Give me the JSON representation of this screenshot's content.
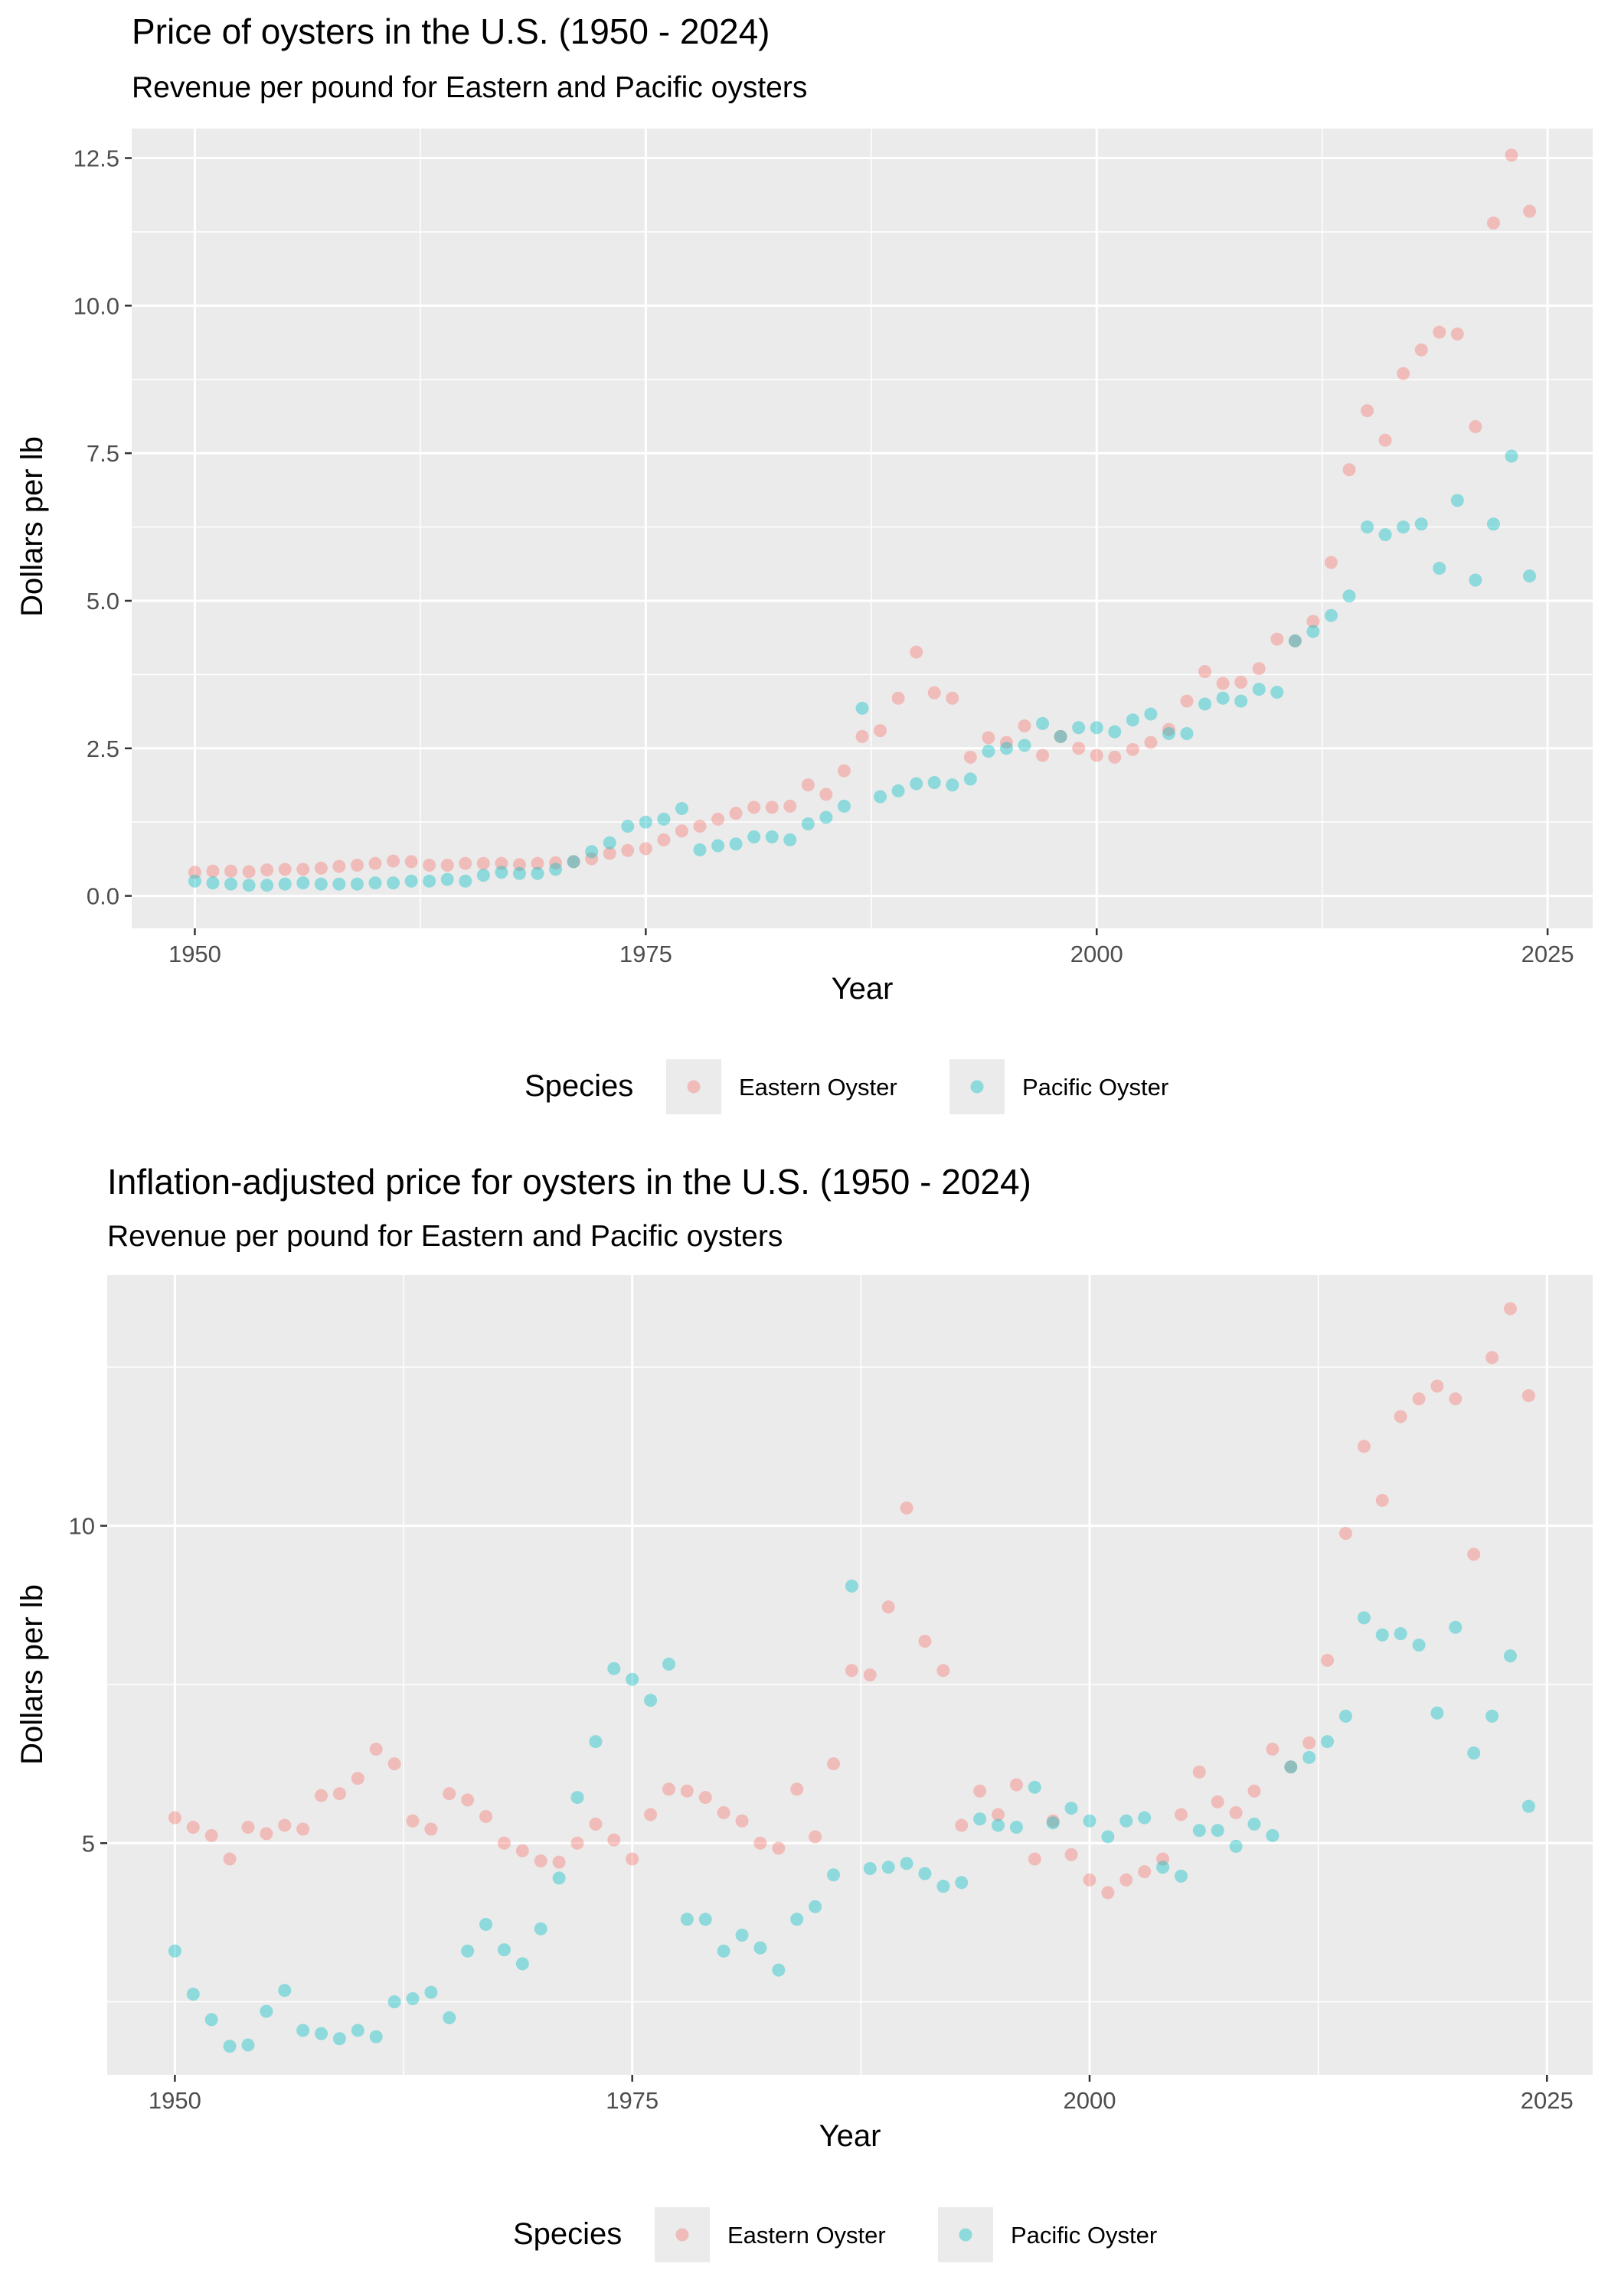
{
  "chart_data": [
    {
      "type": "scatter",
      "title": "Price of oysters in the U.S. (1950 - 2024)",
      "subtitle": "Revenue per pound for Eastern and Pacific oysters",
      "xlabel": "Year",
      "ylabel": "Dollars per lb",
      "xlim": [
        1946.5,
        2027.5
      ],
      "ylim": [
        -0.55,
        13.0
      ],
      "xticks": [
        1950,
        1975,
        2000,
        2025
      ],
      "yticks": [
        0,
        2.5,
        5,
        7.5,
        10,
        12.5
      ],
      "ytick_labels": [
        "0.0",
        "2.5",
        "5.0",
        "7.5",
        "10.0",
        "12.5"
      ],
      "grid": true,
      "legend": {
        "title": "Species",
        "position": "bottom"
      },
      "x": [
        1950,
        1951,
        1952,
        1953,
        1954,
        1955,
        1956,
        1957,
        1958,
        1959,
        1960,
        1961,
        1962,
        1963,
        1964,
        1965,
        1966,
        1967,
        1968,
        1969,
        1970,
        1971,
        1972,
        1973,
        1974,
        1975,
        1976,
        1977,
        1978,
        1979,
        1980,
        1981,
        1982,
        1983,
        1984,
        1985,
        1986,
        1987,
        1988,
        1989,
        1990,
        1991,
        1992,
        1993,
        1994,
        1995,
        1996,
        1997,
        1998,
        1999,
        2000,
        2001,
        2002,
        2003,
        2004,
        2005,
        2006,
        2007,
        2008,
        2009,
        2010,
        2011,
        2012,
        2013,
        2014,
        2015,
        2016,
        2017,
        2018,
        2019,
        2020,
        2021,
        2022,
        2023,
        2024
      ],
      "series": [
        {
          "name": "Eastern Oyster",
          "color": "#F8766D",
          "values": [
            0.4,
            0.42,
            0.42,
            0.41,
            0.44,
            0.45,
            0.45,
            0.47,
            0.5,
            0.52,
            0.55,
            0.59,
            0.58,
            0.52,
            0.52,
            0.55,
            0.55,
            0.55,
            0.53,
            0.55,
            0.56,
            0.58,
            0.63,
            0.72,
            0.77,
            0.8,
            0.95,
            1.1,
            1.18,
            1.3,
            1.4,
            1.5,
            1.5,
            1.52,
            1.88,
            1.72,
            2.12,
            2.7,
            2.8,
            3.35,
            4.13,
            3.44,
            3.35,
            2.35,
            2.68,
            2.6,
            2.88,
            2.38,
            2.7,
            2.5,
            2.38,
            2.35,
            2.48,
            2.6,
            2.82,
            3.3,
            3.8,
            3.6,
            3.62,
            3.85,
            4.35,
            4.32,
            4.65,
            5.65,
            7.22,
            8.22,
            7.72,
            8.85,
            9.25,
            9.55,
            9.52,
            7.95,
            11.4,
            12.55,
            11.6
          ]
        },
        {
          "name": "Pacific Oyster",
          "color": "#00BFC4",
          "values": [
            0.25,
            0.22,
            0.2,
            0.18,
            0.18,
            0.2,
            0.22,
            0.2,
            0.2,
            0.2,
            0.22,
            0.22,
            0.25,
            0.25,
            0.28,
            0.25,
            0.35,
            0.4,
            0.38,
            0.38,
            0.45,
            0.58,
            0.75,
            0.9,
            1.18,
            1.25,
            1.3,
            1.48,
            0.78,
            0.85,
            0.88,
            1.0,
            1.0,
            0.95,
            1.22,
            1.33,
            1.52,
            3.18,
            1.68,
            1.78,
            1.9,
            1.92,
            1.88,
            1.98,
            2.45,
            2.5,
            2.55,
            2.92,
            2.7,
            2.85,
            2.85,
            2.78,
            2.98,
            3.08,
            2.75,
            2.75,
            3.25,
            3.35,
            3.3,
            3.5,
            3.45,
            4.32,
            4.48,
            4.75,
            5.08,
            6.25,
            6.12,
            6.25,
            6.3,
            5.55,
            6.7,
            5.35,
            6.3,
            7.45,
            5.42
          ]
        }
      ]
    },
    {
      "type": "scatter",
      "title": "Inflation-adjusted price for oysters in the U.S. (1950 - 2024)",
      "subtitle": "Revenue per pound for Eastern and Pacific oysters",
      "xlabel": "Year",
      "ylabel": "Dollars per lb",
      "xlim": [
        1946.3,
        2027.5
      ],
      "ylim": [
        1.35,
        13.95
      ],
      "xticks": [
        1950,
        1975,
        2000,
        2025
      ],
      "yticks": [
        5,
        10
      ],
      "ytick_labels": [
        "5",
        "10"
      ],
      "grid": true,
      "legend": {
        "title": "Species",
        "position": "bottom"
      },
      "x": [
        1950,
        1951,
        1952,
        1953,
        1954,
        1955,
        1956,
        1957,
        1958,
        1959,
        1960,
        1961,
        1962,
        1963,
        1964,
        1965,
        1966,
        1967,
        1968,
        1969,
        1970,
        1971,
        1972,
        1973,
        1974,
        1975,
        1976,
        1977,
        1978,
        1979,
        1980,
        1981,
        1982,
        1983,
        1984,
        1985,
        1986,
        1987,
        1988,
        1989,
        1990,
        1991,
        1992,
        1993,
        1994,
        1995,
        1996,
        1997,
        1998,
        1999,
        2000,
        2001,
        2002,
        2003,
        2004,
        2005,
        2006,
        2007,
        2008,
        2009,
        2010,
        2011,
        2012,
        2013,
        2014,
        2015,
        2016,
        2017,
        2018,
        2019,
        2020,
        2021,
        2022,
        2023,
        2024
      ],
      "series": [
        {
          "name": "Eastern Oyster",
          "color": "#F8766D",
          "values": [
            5.4,
            5.25,
            5.12,
            4.75,
            5.25,
            5.15,
            5.28,
            5.22,
            5.75,
            5.78,
            6.02,
            6.48,
            6.25,
            5.35,
            5.22,
            5.78,
            5.68,
            5.42,
            5.0,
            4.88,
            4.72,
            4.7,
            5.0,
            5.3,
            5.05,
            4.75,
            5.45,
            5.85,
            5.82,
            5.72,
            5.48,
            5.35,
            5.0,
            4.92,
            5.85,
            5.1,
            6.25,
            7.72,
            7.65,
            8.72,
            10.28,
            8.18,
            7.72,
            5.28,
            5.82,
            5.45,
            5.92,
            4.75,
            5.35,
            4.82,
            4.42,
            4.22,
            4.42,
            4.55,
            4.75,
            5.45,
            6.12,
            5.65,
            5.48,
            5.82,
            6.48,
            6.2,
            6.58,
            7.88,
            9.88,
            11.25,
            10.4,
            11.72,
            12.0,
            12.2,
            12.0,
            9.55,
            12.65,
            13.42,
            12.05
          ]
        },
        {
          "name": "Pacific Oyster",
          "color": "#00BFC4",
          "values": [
            3.3,
            2.62,
            2.22,
            1.8,
            1.82,
            2.35,
            2.68,
            2.05,
            2.0,
            1.92,
            2.05,
            1.95,
            2.5,
            2.55,
            2.65,
            2.25,
            3.3,
            3.72,
            3.32,
            3.1,
            3.65,
            4.45,
            5.72,
            6.6,
            7.75,
            7.58,
            7.25,
            7.82,
            3.8,
            3.8,
            3.3,
            3.55,
            3.35,
            3.0,
            3.8,
            4.0,
            4.5,
            9.05,
            4.6,
            4.62,
            4.68,
            4.52,
            4.32,
            4.38,
            5.38,
            5.28,
            5.25,
            5.88,
            5.32,
            5.55,
            5.35,
            5.1,
            5.35,
            5.4,
            4.62,
            4.48,
            5.2,
            5.2,
            4.95,
            5.3,
            5.12,
            6.2,
            6.35,
            6.6,
            7.0,
            8.55,
            8.28,
            8.3,
            8.12,
            7.05,
            8.4,
            6.42,
            7.0,
            7.95,
            5.58
          ]
        }
      ]
    }
  ]
}
